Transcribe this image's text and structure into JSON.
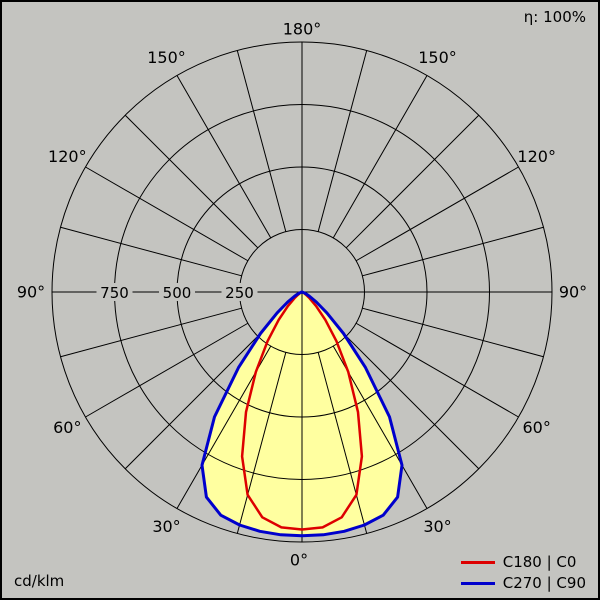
{
  "header": {
    "efficiency": "η: 100%"
  },
  "footer": {
    "unit_label": "cd/klm"
  },
  "legend": {
    "items": [
      {
        "label": "C180 | C0",
        "color": "#dd0000"
      },
      {
        "label": "C270 | C90",
        "color": "#0000cc"
      }
    ]
  },
  "colors": {
    "background": "#c4c4c0",
    "grid": "#000000",
    "text": "#000000",
    "beam_fill": "#ffffa0"
  },
  "chart_data": {
    "type": "polar",
    "subtype": "luminous-intensity-distribution",
    "unit": "cd/klm",
    "radial_max": 1000,
    "radial_ticks": [
      250,
      500,
      750
    ],
    "angle_tick_step": 15,
    "angle_label_step": 30,
    "angle_labels": [
      "0°",
      "30°",
      "60°",
      "90°",
      "120°",
      "150°",
      "180°"
    ],
    "gamma_deg": [
      0,
      5,
      10,
      15,
      20,
      25,
      30,
      35,
      40,
      45,
      50,
      55,
      60,
      65,
      70,
      75,
      80,
      85,
      90
    ],
    "series": [
      {
        "name": "C180 | C0",
        "slug": "c0-c180-curve",
        "color": "#dd0000",
        "stroke_width": 2.5,
        "values": [
          950,
          945,
          915,
          840,
          700,
          530,
          370,
          240,
          145,
          80,
          40,
          20,
          10,
          5,
          2,
          1,
          0,
          0,
          0
        ]
      },
      {
        "name": "C270 | C90",
        "slug": "c90-c270-curve",
        "color": "#0000cc",
        "stroke_width": 3,
        "fill": "#ffffa0",
        "values": [
          975,
          975,
          972,
          965,
          950,
          905,
          800,
          610,
          395,
          235,
          130,
          70,
          35,
          18,
          8,
          3,
          1,
          0,
          0
        ]
      }
    ]
  }
}
